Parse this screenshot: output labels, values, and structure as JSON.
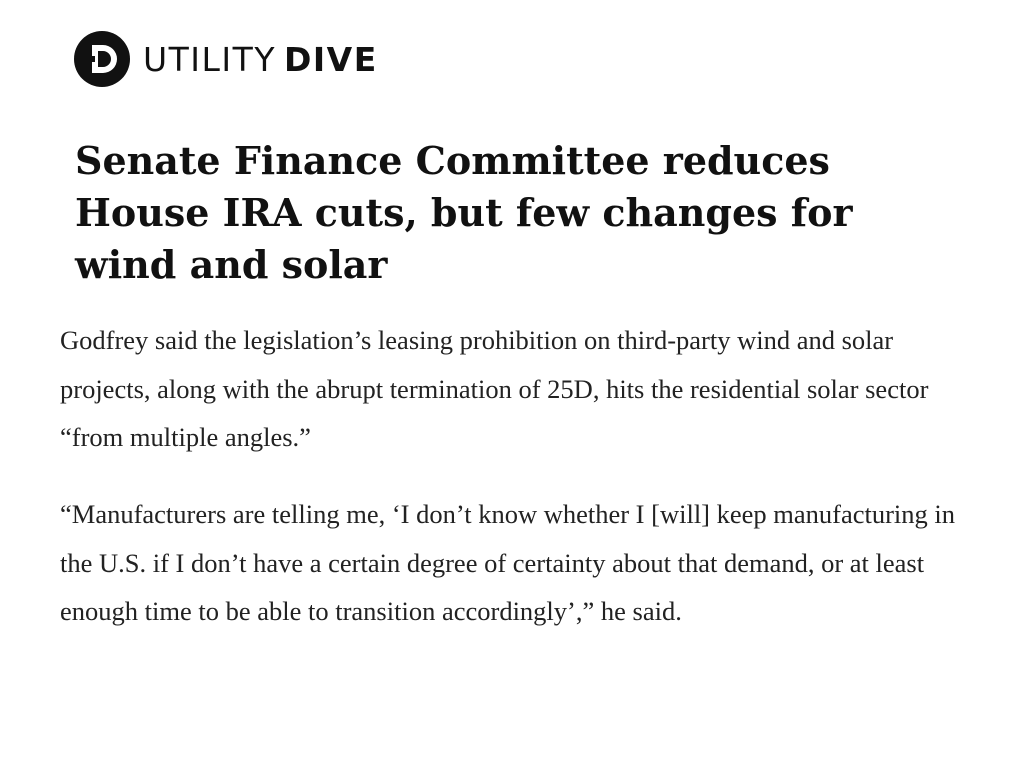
{
  "brand": {
    "name_light": "UTILITY",
    "name_bold": "DIVE",
    "logo_icon": "utility-dive-logo-icon"
  },
  "article": {
    "headline": "Senate Finance Committee reduces House IRA cuts, but few changes for wind and solar",
    "paragraphs": [
      "Godfrey said the legislation’s leasing prohibition on third-party wind and solar projects, along with the abrupt termination of 25D, hits the residential solar sector “from multiple angles.”",
      "“Manufacturers are telling me, ‘I don’t know whether I [will] keep manufacturing in the U.S. if I don’t have a certain degree of certainty about that demand, or at least enough time to be able to transition accordingly’,” he said."
    ]
  }
}
